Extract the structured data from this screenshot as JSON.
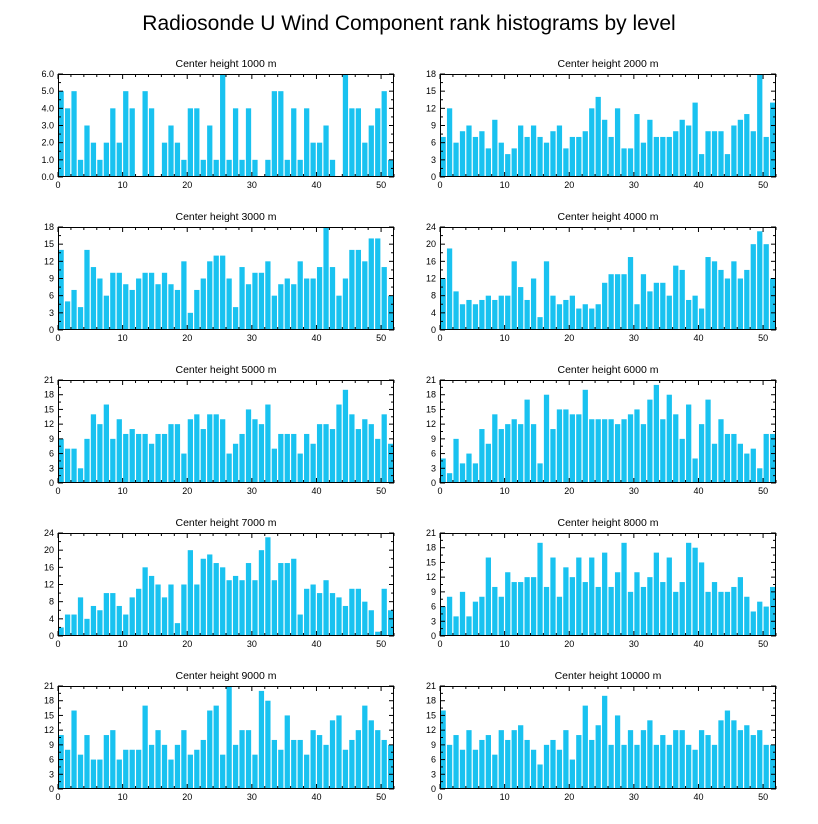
{
  "figure_title": "Radiosonde U Wind Component rank histograms by level",
  "colors": {
    "bar": "#19c2f0",
    "axis": "#000000",
    "background": "#ffffff"
  },
  "chart_data": [
    {
      "type": "bar",
      "title": "Center height 1000 m",
      "x": [
        0,
        1,
        2,
        3,
        4,
        5,
        6,
        7,
        8,
        9,
        10,
        11,
        12,
        13,
        14,
        15,
        16,
        17,
        18,
        19,
        20,
        21,
        22,
        23,
        24,
        25,
        26,
        27,
        28,
        29,
        30,
        31,
        32,
        33,
        34,
        35,
        36,
        37,
        38,
        39,
        40,
        41,
        42,
        43,
        44,
        45,
        46,
        47,
        48,
        49,
        50,
        51
      ],
      "values": [
        5,
        4,
        5,
        1,
        3,
        2,
        1,
        2,
        4,
        2,
        5,
        4,
        0,
        5,
        4,
        0,
        2,
        3,
        2,
        1,
        4,
        4,
        1,
        3,
        1,
        6,
        1,
        4,
        1,
        4,
        1,
        0,
        1,
        5,
        5,
        1,
        4,
        1,
        4,
        2,
        2,
        3,
        1,
        0,
        6,
        4,
        4,
        2,
        3,
        4,
        5,
        1
      ],
      "xlim": [
        0,
        52
      ],
      "ylim": [
        0,
        6
      ],
      "xticks": [
        0,
        10,
        20,
        30,
        40,
        50
      ],
      "xtick_labels": [
        "0",
        "10",
        "20",
        "30",
        "40",
        "50"
      ],
      "yticks": [
        0,
        1,
        2,
        3,
        4,
        5,
        6
      ],
      "ytick_labels": [
        "0.0",
        "1.0",
        "2.0",
        "3.0",
        "4.0",
        "5.0",
        "6.0"
      ],
      "xlabel": "",
      "ylabel": ""
    },
    {
      "type": "bar",
      "title": "Center height 2000 m",
      "x": [
        0,
        1,
        2,
        3,
        4,
        5,
        6,
        7,
        8,
        9,
        10,
        11,
        12,
        13,
        14,
        15,
        16,
        17,
        18,
        19,
        20,
        21,
        22,
        23,
        24,
        25,
        26,
        27,
        28,
        29,
        30,
        31,
        32,
        33,
        34,
        35,
        36,
        37,
        38,
        39,
        40,
        41,
        42,
        43,
        44,
        45,
        46,
        47,
        48,
        49,
        50,
        51
      ],
      "values": [
        7,
        12,
        6,
        8,
        9,
        7,
        8,
        5,
        10,
        6,
        4,
        5,
        9,
        7,
        9,
        7,
        6,
        8,
        9,
        5,
        7,
        7,
        8,
        12,
        14,
        10,
        7,
        12,
        5,
        5,
        11,
        6,
        10,
        7,
        7,
        7,
        8,
        10,
        9,
        13,
        4,
        8,
        8,
        8,
        4,
        9,
        10,
        11,
        8,
        18,
        7,
        13
      ],
      "xlim": [
        0,
        52
      ],
      "ylim": [
        0,
        18
      ],
      "xticks": [
        0,
        10,
        20,
        30,
        40,
        50
      ],
      "xtick_labels": [
        "0",
        "10",
        "20",
        "30",
        "40",
        "50"
      ],
      "yticks": [
        0,
        3,
        6,
        9,
        12,
        15,
        18
      ],
      "ytick_labels": [
        "0",
        "3",
        "6",
        "9",
        "12",
        "15",
        "18"
      ],
      "xlabel": "",
      "ylabel": ""
    },
    {
      "type": "bar",
      "title": "Center height 3000 m",
      "x": [
        0,
        1,
        2,
        3,
        4,
        5,
        6,
        7,
        8,
        9,
        10,
        11,
        12,
        13,
        14,
        15,
        16,
        17,
        18,
        19,
        20,
        21,
        22,
        23,
        24,
        25,
        26,
        27,
        28,
        29,
        30,
        31,
        32,
        33,
        34,
        35,
        36,
        37,
        38,
        39,
        40,
        41,
        42,
        43,
        44,
        45,
        46,
        47,
        48,
        49,
        50,
        51
      ],
      "values": [
        14,
        5,
        7,
        4,
        14,
        11,
        9,
        6,
        10,
        10,
        8,
        7,
        9,
        10,
        10,
        8,
        10,
        8,
        7,
        12,
        3,
        7,
        9,
        12,
        13,
        13,
        9,
        4,
        11,
        8,
        10,
        10,
        12,
        6,
        8,
        9,
        8,
        12,
        9,
        9,
        11,
        18,
        11,
        6,
        9,
        14,
        14,
        12,
        16,
        16,
        11,
        6
      ],
      "xlim": [
        0,
        52
      ],
      "ylim": [
        0,
        18
      ],
      "xticks": [
        0,
        10,
        20,
        30,
        40,
        50
      ],
      "xtick_labels": [
        "0",
        "10",
        "20",
        "30",
        "40",
        "50"
      ],
      "yticks": [
        0,
        3,
        6,
        9,
        12,
        15,
        18
      ],
      "ytick_labels": [
        "0",
        "3",
        "6",
        "9",
        "12",
        "15",
        "18"
      ],
      "xlabel": "",
      "ylabel": ""
    },
    {
      "type": "bar",
      "title": "Center height 4000 m",
      "x": [
        0,
        1,
        2,
        3,
        4,
        5,
        6,
        7,
        8,
        9,
        10,
        11,
        12,
        13,
        14,
        15,
        16,
        17,
        18,
        19,
        20,
        21,
        22,
        23,
        24,
        25,
        26,
        27,
        28,
        29,
        30,
        31,
        32,
        33,
        34,
        35,
        36,
        37,
        38,
        39,
        40,
        41,
        42,
        43,
        44,
        45,
        46,
        47,
        48,
        49,
        50,
        51
      ],
      "values": [
        12,
        19,
        9,
        6,
        7,
        6,
        7,
        8,
        7,
        8,
        8,
        16,
        10,
        7,
        12,
        3,
        16,
        8,
        6,
        7,
        8,
        5,
        6,
        5,
        6,
        11,
        13,
        13,
        13,
        17,
        6,
        13,
        9,
        11,
        11,
        8,
        15,
        14,
        7,
        8,
        5,
        17,
        16,
        14,
        12,
        16,
        12,
        14,
        20,
        23,
        20,
        12
      ],
      "xlim": [
        0,
        52
      ],
      "ylim": [
        0,
        24
      ],
      "xticks": [
        0,
        10,
        20,
        30,
        40,
        50
      ],
      "xtick_labels": [
        "0",
        "10",
        "20",
        "30",
        "40",
        "50"
      ],
      "yticks": [
        0,
        4,
        8,
        12,
        16,
        20,
        24
      ],
      "ytick_labels": [
        "0",
        "4",
        "8",
        "12",
        "16",
        "20",
        "24"
      ],
      "xlabel": "",
      "ylabel": ""
    },
    {
      "type": "bar",
      "title": "Center height 5000 m",
      "x": [
        0,
        1,
        2,
        3,
        4,
        5,
        6,
        7,
        8,
        9,
        10,
        11,
        12,
        13,
        14,
        15,
        16,
        17,
        18,
        19,
        20,
        21,
        22,
        23,
        24,
        25,
        26,
        27,
        28,
        29,
        30,
        31,
        32,
        33,
        34,
        35,
        36,
        37,
        38,
        39,
        40,
        41,
        42,
        43,
        44,
        45,
        46,
        47,
        48,
        49,
        50,
        51
      ],
      "values": [
        9,
        7,
        7,
        3,
        9,
        14,
        12,
        16,
        9,
        13,
        10,
        11,
        10,
        10,
        8,
        10,
        10,
        12,
        12,
        6,
        13,
        14,
        11,
        14,
        14,
        13,
        6,
        8,
        10,
        15,
        13,
        12,
        16,
        7,
        10,
        10,
        10,
        6,
        10,
        8,
        12,
        12,
        11,
        16,
        19,
        14,
        11,
        13,
        12,
        9,
        14,
        8
      ],
      "xlim": [
        0,
        52
      ],
      "ylim": [
        0,
        21
      ],
      "xticks": [
        0,
        10,
        20,
        30,
        40,
        50
      ],
      "xtick_labels": [
        "0",
        "10",
        "20",
        "30",
        "40",
        "50"
      ],
      "yticks": [
        0,
        3,
        6,
        9,
        12,
        15,
        18,
        21
      ],
      "ytick_labels": [
        "0",
        "3",
        "6",
        "9",
        "12",
        "15",
        "18",
        "21"
      ],
      "xlabel": "",
      "ylabel": ""
    },
    {
      "type": "bar",
      "title": "Center height 6000 m",
      "x": [
        0,
        1,
        2,
        3,
        4,
        5,
        6,
        7,
        8,
        9,
        10,
        11,
        12,
        13,
        14,
        15,
        16,
        17,
        18,
        19,
        20,
        21,
        22,
        23,
        24,
        25,
        26,
        27,
        28,
        29,
        30,
        31,
        32,
        33,
        34,
        35,
        36,
        37,
        38,
        39,
        40,
        41,
        42,
        43,
        44,
        45,
        46,
        47,
        48,
        49,
        50,
        51
      ],
      "values": [
        5,
        2,
        9,
        4,
        6,
        4,
        11,
        8,
        14,
        11,
        12,
        13,
        12,
        17,
        12,
        4,
        18,
        11,
        15,
        15,
        14,
        14,
        19,
        13,
        13,
        13,
        13,
        12,
        13,
        14,
        15,
        12,
        17,
        20,
        13,
        18,
        14,
        9,
        16,
        5,
        12,
        17,
        8,
        13,
        10,
        10,
        8,
        6,
        7,
        3,
        10,
        10
      ],
      "xlim": [
        0,
        52
      ],
      "ylim": [
        0,
        21
      ],
      "xticks": [
        0,
        10,
        20,
        30,
        40,
        50
      ],
      "xtick_labels": [
        "0",
        "10",
        "20",
        "30",
        "40",
        "50"
      ],
      "yticks": [
        0,
        3,
        6,
        9,
        12,
        15,
        18,
        21
      ],
      "ytick_labels": [
        "0",
        "3",
        "6",
        "9",
        "12",
        "15",
        "18",
        "21"
      ],
      "xlabel": "",
      "ylabel": ""
    },
    {
      "type": "bar",
      "title": "Center height 7000 m",
      "x": [
        0,
        1,
        2,
        3,
        4,
        5,
        6,
        7,
        8,
        9,
        10,
        11,
        12,
        13,
        14,
        15,
        16,
        17,
        18,
        19,
        20,
        21,
        22,
        23,
        24,
        25,
        26,
        27,
        28,
        29,
        30,
        31,
        32,
        33,
        34,
        35,
        36,
        37,
        38,
        39,
        40,
        41,
        42,
        43,
        44,
        45,
        46,
        47,
        48,
        49,
        50,
        51
      ],
      "values": [
        2,
        5,
        5,
        9,
        4,
        7,
        6,
        10,
        10,
        7,
        5,
        9,
        11,
        16,
        14,
        12,
        9,
        12,
        3,
        12,
        20,
        12,
        18,
        19,
        17,
        16,
        13,
        14,
        13,
        17,
        13,
        20,
        23,
        13,
        17,
        17,
        18,
        5,
        11,
        12,
        10,
        13,
        10,
        9,
        7,
        11,
        11,
        8,
        6,
        1,
        11,
        6
      ],
      "xlim": [
        0,
        52
      ],
      "ylim": [
        0,
        24
      ],
      "xticks": [
        0,
        10,
        20,
        30,
        40,
        50
      ],
      "xtick_labels": [
        "0",
        "10",
        "20",
        "30",
        "40",
        "50"
      ],
      "yticks": [
        0,
        4,
        8,
        12,
        16,
        20,
        24
      ],
      "ytick_labels": [
        "0",
        "4",
        "8",
        "12",
        "16",
        "20",
        "24"
      ],
      "xlabel": "",
      "ylabel": ""
    },
    {
      "type": "bar",
      "title": "Center height 8000 m",
      "x": [
        0,
        1,
        2,
        3,
        4,
        5,
        6,
        7,
        8,
        9,
        10,
        11,
        12,
        13,
        14,
        15,
        16,
        17,
        18,
        19,
        20,
        21,
        22,
        23,
        24,
        25,
        26,
        27,
        28,
        29,
        30,
        31,
        32,
        33,
        34,
        35,
        36,
        37,
        38,
        39,
        40,
        41,
        42,
        43,
        44,
        45,
        46,
        47,
        48,
        49,
        50,
        51
      ],
      "values": [
        6,
        8,
        4,
        9,
        4,
        7,
        8,
        16,
        10,
        8,
        13,
        11,
        11,
        12,
        12,
        19,
        10,
        16,
        8,
        14,
        12,
        16,
        11,
        16,
        10,
        17,
        10,
        13,
        19,
        9,
        13,
        10,
        12,
        17,
        11,
        16,
        9,
        11,
        19,
        18,
        15,
        9,
        11,
        9,
        9,
        10,
        12,
        8,
        5,
        7,
        6,
        10
      ],
      "xlim": [
        0,
        52
      ],
      "ylim": [
        0,
        21
      ],
      "xticks": [
        0,
        10,
        20,
        30,
        40,
        50
      ],
      "xtick_labels": [
        "0",
        "10",
        "20",
        "30",
        "40",
        "50"
      ],
      "yticks": [
        0,
        3,
        6,
        9,
        12,
        15,
        18,
        21
      ],
      "ytick_labels": [
        "0",
        "3",
        "6",
        "9",
        "12",
        "15",
        "18",
        "21"
      ],
      "xlabel": "",
      "ylabel": ""
    },
    {
      "type": "bar",
      "title": "Center height 9000 m",
      "x": [
        0,
        1,
        2,
        3,
        4,
        5,
        6,
        7,
        8,
        9,
        10,
        11,
        12,
        13,
        14,
        15,
        16,
        17,
        18,
        19,
        20,
        21,
        22,
        23,
        24,
        25,
        26,
        27,
        28,
        29,
        30,
        31,
        32,
        33,
        34,
        35,
        36,
        37,
        38,
        39,
        40,
        41,
        42,
        43,
        44,
        45,
        46,
        47,
        48,
        49,
        50,
        51
      ],
      "values": [
        11,
        8,
        16,
        7,
        11,
        6,
        6,
        11,
        12,
        6,
        8,
        8,
        8,
        17,
        9,
        12,
        9,
        6,
        9,
        12,
        7,
        8,
        10,
        16,
        17,
        7,
        21,
        9,
        12,
        12,
        7,
        20,
        18,
        10,
        8,
        15,
        10,
        10,
        7,
        12,
        11,
        9,
        14,
        15,
        8,
        10,
        12,
        17,
        14,
        12,
        10,
        9
      ],
      "xlim": [
        0,
        52
      ],
      "ylim": [
        0,
        21
      ],
      "xticks": [
        0,
        10,
        20,
        30,
        40,
        50
      ],
      "xtick_labels": [
        "0",
        "10",
        "20",
        "30",
        "40",
        "50"
      ],
      "yticks": [
        0,
        3,
        6,
        9,
        12,
        15,
        18,
        21
      ],
      "ytick_labels": [
        "0",
        "3",
        "6",
        "9",
        "12",
        "15",
        "18",
        "21"
      ],
      "xlabel": "",
      "ylabel": ""
    },
    {
      "type": "bar",
      "title": "Center height 10000 m",
      "x": [
        0,
        1,
        2,
        3,
        4,
        5,
        6,
        7,
        8,
        9,
        10,
        11,
        12,
        13,
        14,
        15,
        16,
        17,
        18,
        19,
        20,
        21,
        22,
        23,
        24,
        25,
        26,
        27,
        28,
        29,
        30,
        31,
        32,
        33,
        34,
        35,
        36,
        37,
        38,
        39,
        40,
        41,
        42,
        43,
        44,
        45,
        46,
        47,
        48,
        49,
        50,
        51
      ],
      "values": [
        16,
        9,
        11,
        8,
        12,
        8,
        10,
        11,
        7,
        12,
        10,
        12,
        13,
        10,
        8,
        5,
        9,
        10,
        8,
        12,
        6,
        11,
        17,
        10,
        13,
        19,
        9,
        15,
        9,
        12,
        9,
        12,
        14,
        9,
        11,
        9,
        12,
        12,
        9,
        8,
        12,
        11,
        9,
        14,
        16,
        14,
        12,
        13,
        11,
        12,
        9,
        9
      ],
      "xlim": [
        0,
        52
      ],
      "ylim": [
        0,
        21
      ],
      "xticks": [
        0,
        10,
        20,
        30,
        40,
        50
      ],
      "xtick_labels": [
        "0",
        "10",
        "20",
        "30",
        "40",
        "50"
      ],
      "yticks": [
        0,
        3,
        6,
        9,
        12,
        15,
        18,
        21
      ],
      "ytick_labels": [
        "0",
        "3",
        "6",
        "9",
        "12",
        "15",
        "18",
        "21"
      ],
      "xlabel": "",
      "ylabel": ""
    }
  ]
}
